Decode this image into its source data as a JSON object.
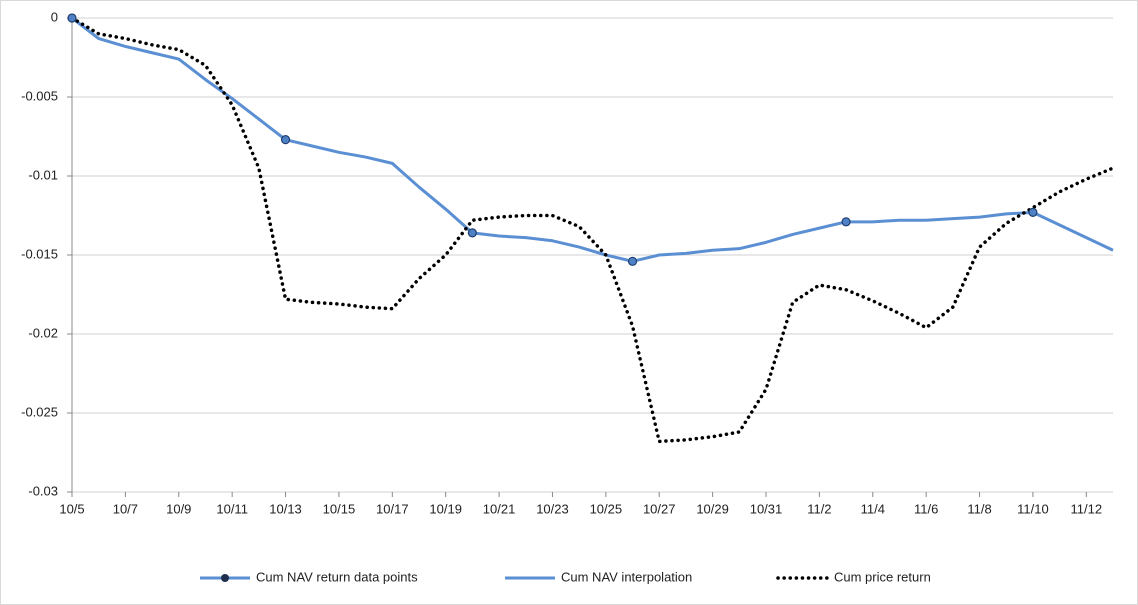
{
  "chart_data": {
    "type": "line",
    "categories": [
      "10/5",
      null,
      "10/7",
      null,
      "10/9",
      null,
      "10/11",
      null,
      "10/13",
      null,
      "10/15",
      null,
      "10/17",
      null,
      "10/19",
      null,
      "10/21",
      null,
      "10/23",
      null,
      "10/25",
      null,
      "10/27",
      null,
      "10/29",
      null,
      "10/31",
      null,
      "11/2",
      null,
      "11/4",
      null,
      "11/6",
      null,
      "11/8",
      null,
      "11/10",
      null,
      "11/12",
      null
    ],
    "series": [
      {
        "name": "Cum NAV return data points",
        "color": "#4f81c7",
        "style": "markers",
        "values": [
          0,
          null,
          null,
          null,
          null,
          null,
          null,
          null,
          -0.0077,
          null,
          null,
          null,
          null,
          null,
          null,
          -0.0136,
          null,
          null,
          null,
          null,
          null,
          -0.0154,
          null,
          null,
          null,
          null,
          null,
          null,
          null,
          -0.0129,
          null,
          null,
          null,
          null,
          null,
          null,
          -0.0123,
          null,
          null,
          null
        ]
      },
      {
        "name": "Cum NAV interpolation",
        "color": "#5b8fd3",
        "style": "solid",
        "values": [
          0,
          -0.0013,
          -0.0018,
          -0.0022,
          -0.0026,
          -0.0039,
          -0.0051,
          -0.0064,
          -0.0077,
          -0.0081,
          -0.0085,
          -0.0088,
          -0.0092,
          -0.0107,
          -0.0121,
          -0.0136,
          -0.0138,
          -0.0139,
          -0.0141,
          -0.0145,
          -0.015,
          -0.0154,
          -0.015,
          -0.0149,
          -0.0147,
          -0.0146,
          -0.0142,
          -0.0137,
          -0.0133,
          -0.0129,
          -0.0129,
          -0.0128,
          -0.0128,
          -0.0127,
          -0.0126,
          -0.0124,
          -0.0123,
          -0.0131,
          -0.0139,
          -0.0147
        ]
      },
      {
        "name": "Cum price return",
        "color": "#000000",
        "style": "dotted",
        "values": [
          0,
          -0.001,
          -0.0013,
          -0.0017,
          -0.002,
          -0.003,
          -0.0055,
          -0.0095,
          -0.0178,
          -0.018,
          -0.0181,
          -0.0183,
          -0.0184,
          -0.0165,
          -0.015,
          -0.0128,
          -0.0126,
          -0.0125,
          -0.0125,
          -0.0132,
          -0.015,
          -0.0195,
          -0.0268,
          -0.0267,
          -0.0265,
          -0.0262,
          -0.0235,
          -0.018,
          -0.0169,
          -0.0172,
          -0.0179,
          -0.0187,
          -0.0196,
          -0.0183,
          -0.0145,
          -0.013,
          -0.012,
          -0.011,
          -0.0102,
          -0.0095
        ]
      }
    ],
    "ylim": [
      -0.03,
      0
    ],
    "yticks": [
      0,
      -0.005,
      -0.01,
      -0.015,
      -0.02,
      -0.025,
      -0.03
    ],
    "grid": true,
    "legend": "bottom"
  }
}
